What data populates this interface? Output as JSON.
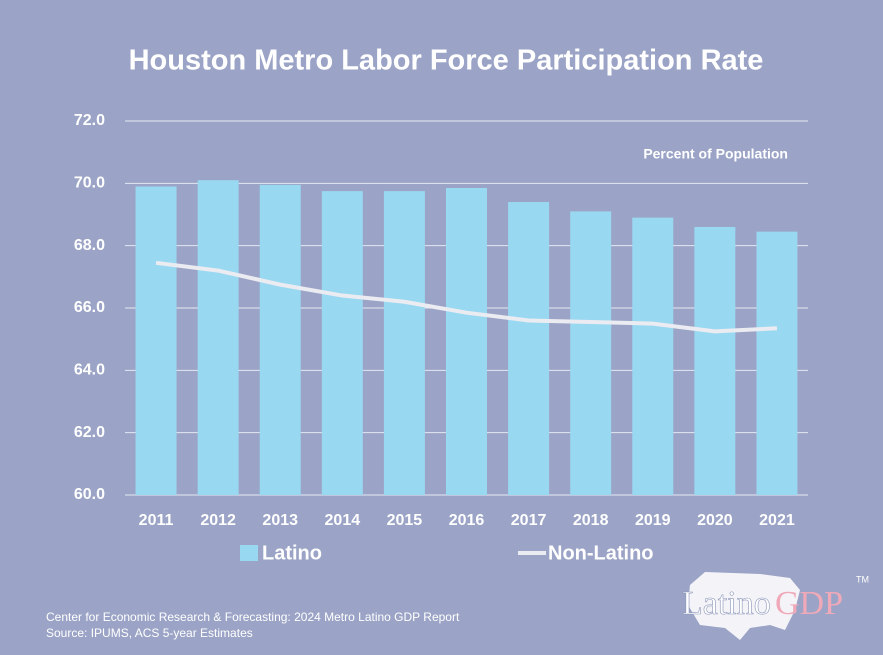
{
  "chart_data": {
    "type": "bar",
    "title": "Houston Metro Labor Force Participation Rate",
    "annotation": "Percent of Population",
    "categories": [
      "2011",
      "2012",
      "2013",
      "2014",
      "2015",
      "2016",
      "2017",
      "2018",
      "2019",
      "2020",
      "2021"
    ],
    "series": [
      {
        "name": "Latino",
        "type": "bar",
        "color": "#99d8f1",
        "values": [
          69.9,
          70.1,
          69.95,
          69.75,
          69.75,
          69.85,
          69.4,
          69.1,
          68.9,
          68.6,
          68.45
        ]
      },
      {
        "name": "Non-Latino",
        "type": "line",
        "color": "#ebebf2",
        "values": [
          67.45,
          67.2,
          66.75,
          66.4,
          66.2,
          65.85,
          65.6,
          65.55,
          65.5,
          65.25,
          65.35
        ]
      }
    ],
    "ylim": [
      60,
      72
    ],
    "yticks": [
      {
        "value": 60,
        "label": "60.0"
      },
      {
        "value": 62,
        "label": "62.0"
      },
      {
        "value": 64,
        "label": "64.0"
      },
      {
        "value": 66,
        "label": "66.0"
      },
      {
        "value": 68,
        "label": "68.0"
      },
      {
        "value": 70,
        "label": "70.0"
      },
      {
        "value": 72,
        "label": "72.0"
      }
    ],
    "grid": true,
    "legend": "bottom",
    "sources": [
      "Center for Economic Research & Forecasting: 2024 Metro Latino GDP Report",
      "Source: IPUMS, ACS 5-year Estimates"
    ],
    "logo": {
      "part1": "Latino",
      "part2": "GDP",
      "mark": "TM"
    }
  }
}
